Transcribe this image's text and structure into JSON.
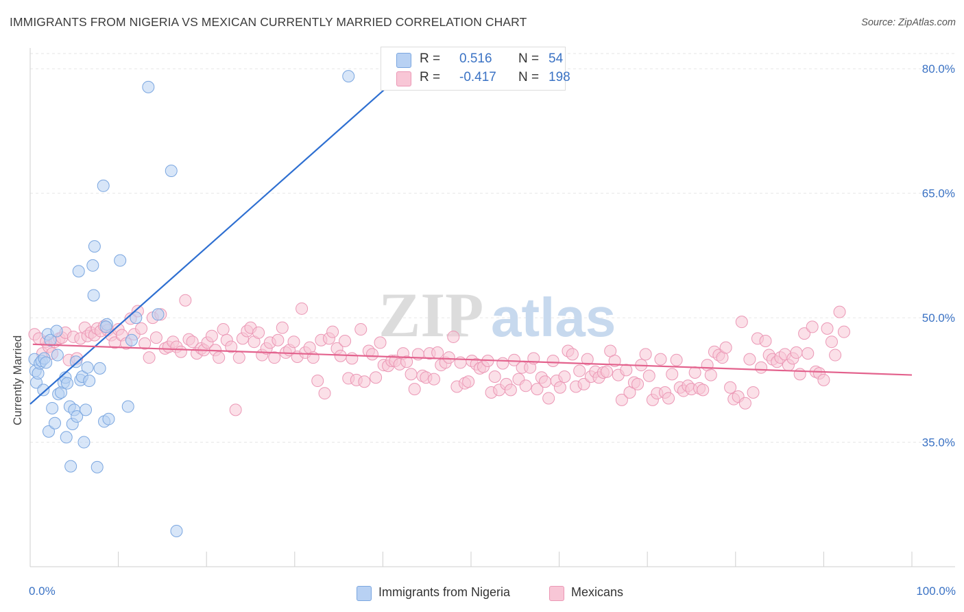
{
  "title": "IMMIGRANTS FROM NIGERIA VS MEXICAN CURRENTLY MARRIED CORRELATION CHART",
  "source": "Source: ZipAtlas.com",
  "watermark": {
    "zip": "ZIP",
    "atlas": "atlas"
  },
  "legend": [
    {
      "r_label": "R =",
      "r_value": "0.516",
      "n_label": "N =",
      "n_value": "54",
      "fill": "#b8d1f3",
      "stroke": "#7aa6e0"
    },
    {
      "r_label": "R =",
      "r_value": "-0.417",
      "n_label": "N =",
      "n_value": "198",
      "fill": "#f8c6d6",
      "stroke": "#eb97b5"
    }
  ],
  "bottom_legend": [
    {
      "label": "Immigrants from Nigeria",
      "fill": "#b8d1f3",
      "stroke": "#7aa6e0"
    },
    {
      "label": "Mexicans",
      "fill": "#f8c6d6",
      "stroke": "#eb97b5"
    }
  ],
  "chart_data": {
    "type": "scatter",
    "title": "IMMIGRANTS FROM NIGERIA VS MEXICAN CURRENTLY MARRIED CORRELATION CHART",
    "xlabel": "",
    "ylabel": "Currently Married",
    "xlim": [
      0,
      100
    ],
    "ylim": [
      20,
      82.5
    ],
    "x_tick_labels": [
      "0.0%",
      "100.0%"
    ],
    "y_ticks": [
      {
        "value": 80,
        "label": "80.0%"
      },
      {
        "value": 65,
        "label": "65.0%"
      },
      {
        "value": 50,
        "label": "50.0%"
      },
      {
        "value": 35,
        "label": "35.0%"
      }
    ],
    "grid": true,
    "series": [
      {
        "name": "Immigrants from Nigeria",
        "color": "#7aa6e0",
        "fill": "#b8d1f3",
        "trend": {
          "x": [
            0,
            40.5
          ],
          "y": [
            39.6,
            77.8
          ],
          "color": "#2e6fd1"
        },
        "points": [
          [
            0.5,
            45.0
          ],
          [
            0.6,
            43.6
          ],
          [
            0.7,
            42.2
          ],
          [
            0.9,
            43.3
          ],
          [
            1.1,
            44.5
          ],
          [
            1.3,
            44.8
          ],
          [
            1.5,
            41.3
          ],
          [
            1.6,
            45.1
          ],
          [
            1.8,
            44.6
          ],
          [
            2.0,
            48.0
          ],
          [
            2.1,
            36.3
          ],
          [
            2.3,
            47.3
          ],
          [
            2.5,
            39.1
          ],
          [
            2.8,
            37.3
          ],
          [
            3.0,
            48.4
          ],
          [
            3.1,
            45.5
          ],
          [
            3.2,
            40.8
          ],
          [
            3.5,
            41.0
          ],
          [
            3.8,
            42.2
          ],
          [
            4.0,
            42.8
          ],
          [
            4.1,
            35.6
          ],
          [
            4.2,
            42.1
          ],
          [
            4.5,
            39.3
          ],
          [
            4.6,
            32.1
          ],
          [
            4.8,
            37.2
          ],
          [
            5.0,
            38.9
          ],
          [
            5.2,
            44.7
          ],
          [
            5.3,
            38.1
          ],
          [
            5.5,
            55.6
          ],
          [
            5.7,
            42.5
          ],
          [
            5.9,
            42.9
          ],
          [
            6.1,
            35.0
          ],
          [
            6.3,
            38.9
          ],
          [
            6.5,
            44.0
          ],
          [
            6.7,
            42.4
          ],
          [
            7.1,
            56.3
          ],
          [
            7.2,
            52.7
          ],
          [
            7.3,
            58.6
          ],
          [
            7.6,
            32.0
          ],
          [
            7.9,
            43.9
          ],
          [
            8.3,
            65.9
          ],
          [
            8.4,
            37.5
          ],
          [
            8.7,
            49.2
          ],
          [
            8.9,
            37.8
          ],
          [
            10.2,
            56.9
          ],
          [
            11.1,
            39.3
          ],
          [
            11.5,
            47.3
          ],
          [
            12.0,
            50.0
          ],
          [
            13.4,
            77.8
          ],
          [
            14.5,
            50.4
          ],
          [
            16.0,
            67.7
          ],
          [
            16.6,
            24.3
          ],
          [
            36.1,
            79.1
          ],
          [
            8.6,
            48.9
          ]
        ]
      },
      {
        "name": "Mexicans",
        "color": "#eb97b5",
        "fill": "#f8c6d6",
        "trend": {
          "x": [
            0.3,
            100
          ],
          "y": [
            46.8,
            43.1
          ],
          "color": "#e3628d"
        },
        "points": [
          [
            0.5,
            48.0
          ],
          [
            1.0,
            47.5
          ],
          [
            1.4,
            45.7
          ],
          [
            1.8,
            47.1
          ],
          [
            2.1,
            46.5
          ],
          [
            2.5,
            45.7
          ],
          [
            2.8,
            47.1
          ],
          [
            3.3,
            47.5
          ],
          [
            3.6,
            47.6
          ],
          [
            4.0,
            48.2
          ],
          [
            4.4,
            44.9
          ],
          [
            4.9,
            47.7
          ],
          [
            5.3,
            45.1
          ],
          [
            5.7,
            47.5
          ],
          [
            6.2,
            48.8
          ],
          [
            6.5,
            47.8
          ],
          [
            6.9,
            48.2
          ],
          [
            7.3,
            47.9
          ],
          [
            7.6,
            48.7
          ],
          [
            8.0,
            48.4
          ],
          [
            8.4,
            49.0
          ],
          [
            8.8,
            48.5
          ],
          [
            9.2,
            47.9
          ],
          [
            9.6,
            47.0
          ],
          [
            10.0,
            48.6
          ],
          [
            10.4,
            47.9
          ],
          [
            10.9,
            46.9
          ],
          [
            11.4,
            49.9
          ],
          [
            11.8,
            48.0
          ],
          [
            12.2,
            50.8
          ],
          [
            12.6,
            48.7
          ],
          [
            13.0,
            46.9
          ],
          [
            13.5,
            45.2
          ],
          [
            13.9,
            50.0
          ],
          [
            14.3,
            47.6
          ],
          [
            14.8,
            50.4
          ],
          [
            15.3,
            46.3
          ],
          [
            15.7,
            46.5
          ],
          [
            16.2,
            47.1
          ],
          [
            16.6,
            46.5
          ],
          [
            17.1,
            45.9
          ],
          [
            17.6,
            52.1
          ],
          [
            18.0,
            47.4
          ],
          [
            18.4,
            47.1
          ],
          [
            18.9,
            45.7
          ],
          [
            19.4,
            46.3
          ],
          [
            19.7,
            46.1
          ],
          [
            20.1,
            47.0
          ],
          [
            20.6,
            47.8
          ],
          [
            21.0,
            46.1
          ],
          [
            21.4,
            45.2
          ],
          [
            21.9,
            48.6
          ],
          [
            22.3,
            47.3
          ],
          [
            22.8,
            46.5
          ],
          [
            23.3,
            38.9
          ],
          [
            23.7,
            45.2
          ],
          [
            24.1,
            47.5
          ],
          [
            24.6,
            48.4
          ],
          [
            25.0,
            48.8
          ],
          [
            25.4,
            47.1
          ],
          [
            25.9,
            48.2
          ],
          [
            26.3,
            45.5
          ],
          [
            26.8,
            46.3
          ],
          [
            27.2,
            47.0
          ],
          [
            27.7,
            45.2
          ],
          [
            28.1,
            47.3
          ],
          [
            28.6,
            48.8
          ],
          [
            29.0,
            45.8
          ],
          [
            29.4,
            46.1
          ],
          [
            29.9,
            47.1
          ],
          [
            30.3,
            45.3
          ],
          [
            30.8,
            51.1
          ],
          [
            31.2,
            45.8
          ],
          [
            31.7,
            46.4
          ],
          [
            32.1,
            45.2
          ],
          [
            32.6,
            42.4
          ],
          [
            33.0,
            47.3
          ],
          [
            33.4,
            40.9
          ],
          [
            33.9,
            47.5
          ],
          [
            34.3,
            48.3
          ],
          [
            34.8,
            46.3
          ],
          [
            35.2,
            45.4
          ],
          [
            35.7,
            47.2
          ],
          [
            36.1,
            42.7
          ],
          [
            36.5,
            45.1
          ],
          [
            37.0,
            42.5
          ],
          [
            37.5,
            48.6
          ],
          [
            37.9,
            42.3
          ],
          [
            38.4,
            46.0
          ],
          [
            38.8,
            45.6
          ],
          [
            39.2,
            42.8
          ],
          [
            39.7,
            47.0
          ],
          [
            40.1,
            44.3
          ],
          [
            40.6,
            44.2
          ],
          [
            41.0,
            44.8
          ],
          [
            41.4,
            44.8
          ],
          [
            41.9,
            44.4
          ],
          [
            42.3,
            45.7
          ],
          [
            42.7,
            44.7
          ],
          [
            43.2,
            43.2
          ],
          [
            43.6,
            41.4
          ],
          [
            44.0,
            45.6
          ],
          [
            44.5,
            43.0
          ],
          [
            44.9,
            42.8
          ],
          [
            45.3,
            45.7
          ],
          [
            45.8,
            42.6
          ],
          [
            46.2,
            45.8
          ],
          [
            46.6,
            44.3
          ],
          [
            47.1,
            44.6
          ],
          [
            47.5,
            45.2
          ],
          [
            48.0,
            47.7
          ],
          [
            48.4,
            41.7
          ],
          [
            48.8,
            44.6
          ],
          [
            49.3,
            42.1
          ],
          [
            49.7,
            42.3
          ],
          [
            50.1,
            44.8
          ],
          [
            50.6,
            44.4
          ],
          [
            51.0,
            43.9
          ],
          [
            51.4,
            44.1
          ],
          [
            51.9,
            44.8
          ],
          [
            52.3,
            41.0
          ],
          [
            52.7,
            42.9
          ],
          [
            53.2,
            41.3
          ],
          [
            53.6,
            44.5
          ],
          [
            54.0,
            42.0
          ],
          [
            54.5,
            41.3
          ],
          [
            54.9,
            44.9
          ],
          [
            55.4,
            42.6
          ],
          [
            55.8,
            44.0
          ],
          [
            56.2,
            41.8
          ],
          [
            56.7,
            44.0
          ],
          [
            57.1,
            45.1
          ],
          [
            57.5,
            41.4
          ],
          [
            58.0,
            42.8
          ],
          [
            58.4,
            42.3
          ],
          [
            58.8,
            40.3
          ],
          [
            59.3,
            44.8
          ],
          [
            59.7,
            42.4
          ],
          [
            60.1,
            41.6
          ],
          [
            60.6,
            42.9
          ],
          [
            61.0,
            46.0
          ],
          [
            61.5,
            45.6
          ],
          [
            61.9,
            41.7
          ],
          [
            62.3,
            43.6
          ],
          [
            62.8,
            42.0
          ],
          [
            63.2,
            45.0
          ],
          [
            63.6,
            42.9
          ],
          [
            64.1,
            43.5
          ],
          [
            64.5,
            42.8
          ],
          [
            65.0,
            43.4
          ],
          [
            65.4,
            43.5
          ],
          [
            65.8,
            46.0
          ],
          [
            66.3,
            44.8
          ],
          [
            66.7,
            43.1
          ],
          [
            67.1,
            40.1
          ],
          [
            67.6,
            43.7
          ],
          [
            68.0,
            41.0
          ],
          [
            68.5,
            42.2
          ],
          [
            68.9,
            42.0
          ],
          [
            69.3,
            44.3
          ],
          [
            69.8,
            45.6
          ],
          [
            70.2,
            43.0
          ],
          [
            70.6,
            40.1
          ],
          [
            71.1,
            40.9
          ],
          [
            71.5,
            45.0
          ],
          [
            72.0,
            41.0
          ],
          [
            72.4,
            40.3
          ],
          [
            72.8,
            43.2
          ],
          [
            73.3,
            44.9
          ],
          [
            73.7,
            41.6
          ],
          [
            74.1,
            41.2
          ],
          [
            74.6,
            41.8
          ],
          [
            75.0,
            41.4
          ],
          [
            75.4,
            43.4
          ],
          [
            75.9,
            41.5
          ],
          [
            76.3,
            41.3
          ],
          [
            76.8,
            44.3
          ],
          [
            77.2,
            43.1
          ],
          [
            77.6,
            45.9
          ],
          [
            78.1,
            45.5
          ],
          [
            78.5,
            45.2
          ],
          [
            78.9,
            46.4
          ],
          [
            79.4,
            41.6
          ],
          [
            79.8,
            40.2
          ],
          [
            80.3,
            40.5
          ],
          [
            80.7,
            49.5
          ],
          [
            81.1,
            39.7
          ],
          [
            81.6,
            45.0
          ],
          [
            82.0,
            41.0
          ],
          [
            82.5,
            47.5
          ],
          [
            82.9,
            44.0
          ],
          [
            83.4,
            47.2
          ],
          [
            83.8,
            45.5
          ],
          [
            84.2,
            45.0
          ],
          [
            84.7,
            44.7
          ],
          [
            85.1,
            45.2
          ],
          [
            85.6,
            45.6
          ],
          [
            86.0,
            44.3
          ],
          [
            86.5,
            45.1
          ],
          [
            86.9,
            45.8
          ],
          [
            87.3,
            43.2
          ],
          [
            87.8,
            48.1
          ],
          [
            88.2,
            45.7
          ],
          [
            88.7,
            48.9
          ],
          [
            89.1,
            43.5
          ],
          [
            89.5,
            43.3
          ],
          [
            90.0,
            42.5
          ],
          [
            90.4,
            48.7
          ],
          [
            90.9,
            47.1
          ],
          [
            91.3,
            45.5
          ],
          [
            91.8,
            50.7
          ],
          [
            92.3,
            48.3
          ]
        ]
      }
    ]
  }
}
